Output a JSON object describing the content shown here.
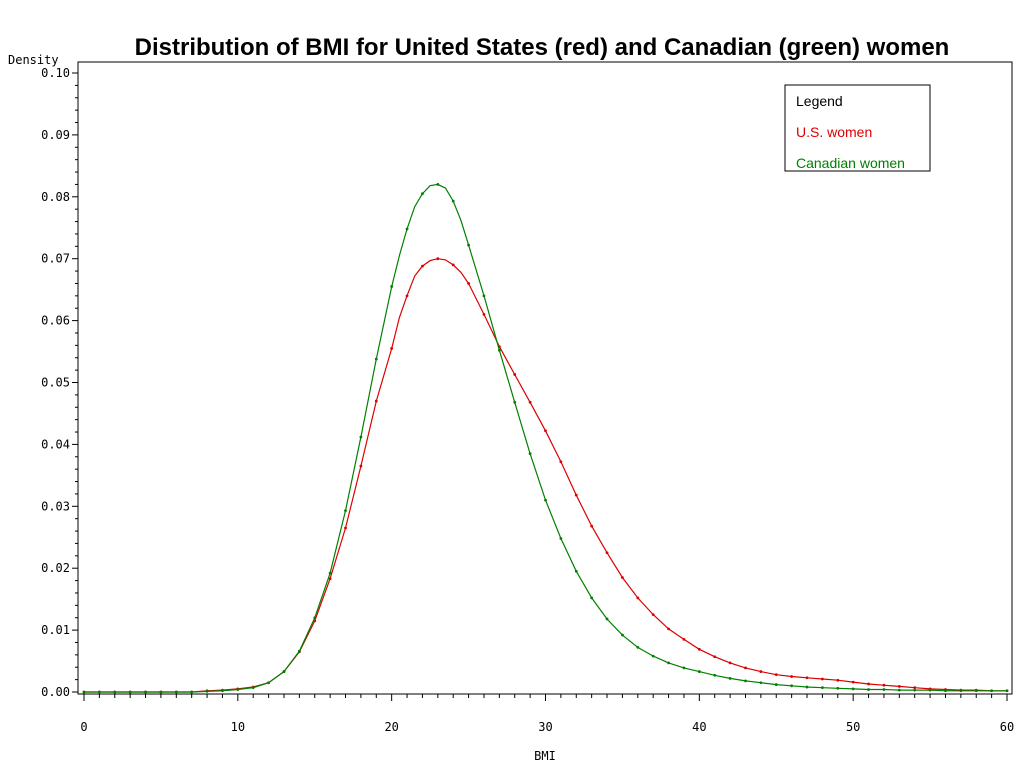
{
  "chart_data": {
    "type": "line",
    "title": "Distribution of BMI for United States (red) and Canadian (green) women",
    "xlabel": "BMI",
    "ylabel": "Density",
    "xlim": [
      0,
      60
    ],
    "ylim": [
      0,
      0.1
    ],
    "x_ticks": [
      0,
      10,
      20,
      30,
      40,
      50,
      60
    ],
    "y_ticks": [
      "0.00",
      "0.01",
      "0.02",
      "0.03",
      "0.04",
      "0.05",
      "0.06",
      "0.07",
      "0.08",
      "0.09",
      "0.10"
    ],
    "grid": false,
    "legend": {
      "title": "Legend",
      "placement": "top-right",
      "entries": [
        {
          "label": "U.S. women",
          "color": "#dd0000"
        },
        {
          "label": "Canadian women",
          "color": "#008000"
        }
      ]
    },
    "series": [
      {
        "name": "U.S. women",
        "color": "#dd0000",
        "x": [
          0,
          1,
          2,
          3,
          4,
          5,
          6,
          7,
          8,
          9,
          10,
          11,
          12,
          13,
          14,
          15,
          16,
          17,
          18,
          19,
          20,
          20.5,
          21,
          21.5,
          22,
          22.5,
          23,
          23.5,
          24,
          24.5,
          25,
          26,
          27,
          28,
          29,
          30,
          31,
          32,
          33,
          34,
          35,
          36,
          37,
          38,
          39,
          40,
          41,
          42,
          43,
          44,
          45,
          46,
          47,
          48,
          49,
          50,
          51,
          52,
          53,
          54,
          55,
          56,
          57,
          58,
          59,
          60
        ],
        "y": [
          0,
          0,
          0,
          0,
          0,
          0,
          0,
          0,
          0.0002,
          0.0003,
          0.0005,
          0.0008,
          0.0015,
          0.0033,
          0.0065,
          0.0115,
          0.0183,
          0.0265,
          0.0365,
          0.047,
          0.0555,
          0.0605,
          0.064,
          0.0672,
          0.0688,
          0.0697,
          0.07,
          0.0698,
          0.069,
          0.0678,
          0.066,
          0.061,
          0.0558,
          0.0513,
          0.0468,
          0.0422,
          0.0372,
          0.0318,
          0.0268,
          0.0225,
          0.0185,
          0.0152,
          0.0125,
          0.0102,
          0.0085,
          0.0069,
          0.0057,
          0.0047,
          0.0039,
          0.0033,
          0.0028,
          0.0025,
          0.0023,
          0.0021,
          0.0019,
          0.0016,
          0.0013,
          0.0011,
          0.0009,
          0.0007,
          0.0005,
          0.0004,
          0.0003,
          0.0003,
          0.0002,
          0.0002
        ]
      },
      {
        "name": "Canadian women",
        "color": "#008000",
        "x": [
          0,
          1,
          2,
          3,
          4,
          5,
          6,
          7,
          8,
          9,
          10,
          11,
          12,
          13,
          14,
          15,
          16,
          17,
          18,
          19,
          20,
          20.5,
          21,
          21.5,
          22,
          22.5,
          23,
          23.5,
          24,
          24.5,
          25,
          26,
          27,
          28,
          29,
          30,
          31,
          32,
          33,
          34,
          35,
          36,
          37,
          38,
          39,
          40,
          41,
          42,
          43,
          44,
          45,
          46,
          47,
          48,
          49,
          50,
          51,
          52,
          53,
          54,
          55,
          56,
          57,
          58,
          59,
          60
        ],
        "y": [
          0,
          0,
          0,
          0,
          0,
          0,
          0,
          0,
          0.0001,
          0.0002,
          0.0004,
          0.0007,
          0.0015,
          0.0033,
          0.0066,
          0.012,
          0.0192,
          0.0293,
          0.0412,
          0.0538,
          0.0655,
          0.0705,
          0.0748,
          0.0784,
          0.0805,
          0.0818,
          0.082,
          0.0814,
          0.0793,
          0.0762,
          0.0722,
          0.064,
          0.0552,
          0.0468,
          0.0385,
          0.031,
          0.0248,
          0.0195,
          0.0152,
          0.0118,
          0.0092,
          0.0072,
          0.0058,
          0.0047,
          0.0039,
          0.0033,
          0.0027,
          0.0022,
          0.0018,
          0.0015,
          0.0012,
          0.001,
          0.0008,
          0.0007,
          0.0006,
          0.0005,
          0.0004,
          0.0004,
          0.0003,
          0.0003,
          0.0003,
          0.0002,
          0.0002,
          0.0002,
          0.0002,
          0.0002
        ]
      }
    ]
  }
}
